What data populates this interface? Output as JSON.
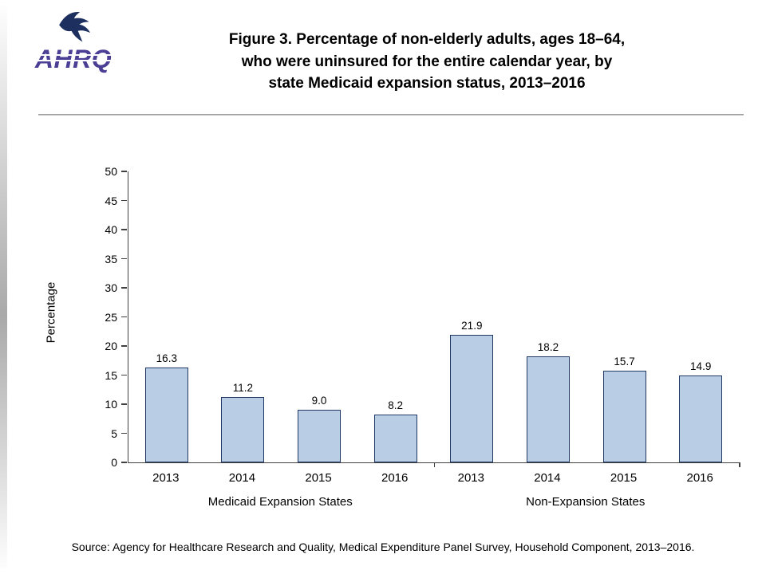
{
  "header": {
    "logo_text": "AHRQ",
    "title_lines": [
      "Figure 3. Percentage of non-elderly adults, ages 18–64,",
      "who were uninsured for the entire calendar year, by",
      "state Medicaid expansion status, 2013–2016"
    ]
  },
  "chart_data": {
    "type": "bar",
    "title": "Figure 3. Percentage of non-elderly adults, ages 18–64, who were uninsured for the entire calendar year, by state Medicaid expansion status, 2013–2016",
    "xlabel": "",
    "ylabel": "Percentage",
    "ylim": [
      0,
      50
    ],
    "ytick_step": 5,
    "grid": false,
    "legend": false,
    "categories": [
      "2013",
      "2014",
      "2015",
      "2016",
      "2013",
      "2014",
      "2015",
      "2016"
    ],
    "groups": [
      {
        "label": "Medicaid Expansion States",
        "years": [
          "2013",
          "2014",
          "2015",
          "2016"
        ],
        "values": [
          16.3,
          11.2,
          9.0,
          8.2
        ]
      },
      {
        "label": "Non-Expansion States",
        "years": [
          "2013",
          "2014",
          "2015",
          "2016"
        ],
        "values": [
          21.9,
          18.2,
          15.7,
          14.9
        ]
      }
    ],
    "bar_fill": "#B9CDE5",
    "bar_border": "#1F3864"
  },
  "footer": {
    "source": "Source: Agency for Healthcare Research and Quality, Medical Expenditure Panel Survey, Household Component, 2013–2016."
  }
}
